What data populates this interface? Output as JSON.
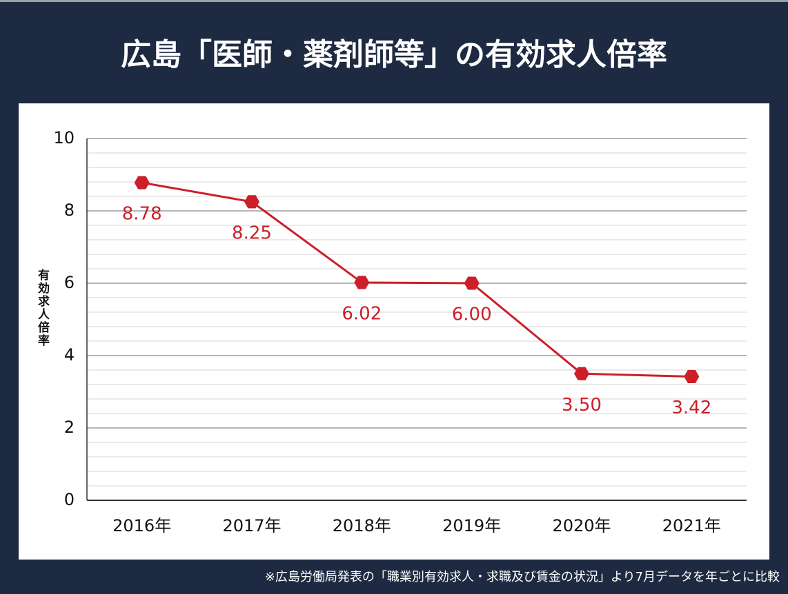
{
  "chart_data": {
    "type": "line",
    "title": "広島「医師・薬剤師等」の有効求人倍率",
    "y_label": "有効求人倍率",
    "note": "※広島労働局発表の「職業別有効求人・求職及び賃金の状況」より7月データを年ごとに比較",
    "categories": [
      "2016年",
      "2017年",
      "2018年",
      "2019年",
      "2020年",
      "2021年"
    ],
    "series": [
      {
        "name": "有効求人倍率",
        "color": "#cc1f28",
        "values": [
          8.78,
          8.25,
          6.02,
          6.0,
          3.5,
          3.42
        ],
        "value_labels": [
          "8.78",
          "8.25",
          "6.02",
          "6.00",
          "3.50",
          "3.42"
        ]
      }
    ],
    "ylim": [
      0,
      10
    ],
    "yticks": [
      0,
      2,
      4,
      6,
      8,
      10
    ],
    "minor_yticks": [
      0.4,
      0.8,
      1.2,
      1.6,
      2.4,
      2.8,
      3.2,
      3.6,
      4.4,
      4.8,
      5.2,
      5.6,
      6.4,
      6.8,
      7.2,
      7.6,
      8.4,
      8.8,
      9.2,
      9.6
    ],
    "grid": true
  }
}
